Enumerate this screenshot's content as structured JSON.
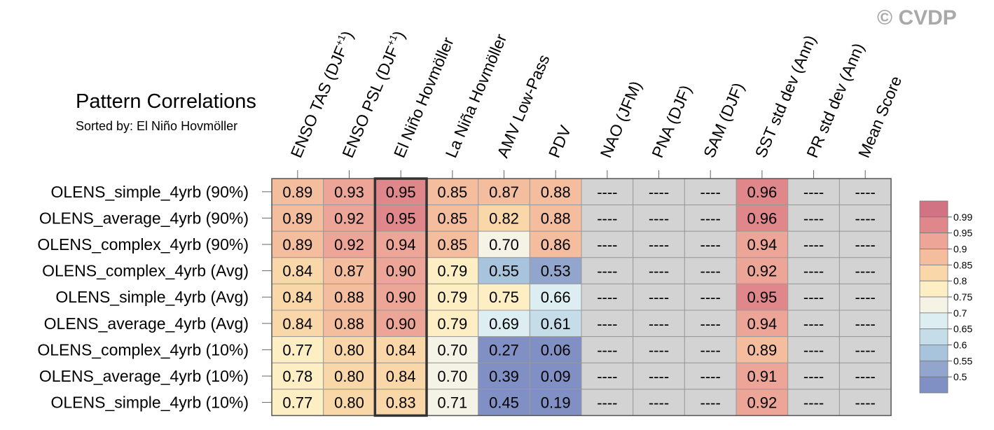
{
  "credit": "© CVDP",
  "chart_data": {
    "type": "heatmap",
    "title": "Pattern Correlations",
    "subtitle": "Sorted by: El Niño Hovmöller",
    "sorted_column": "El Niño Hovmöller",
    "columns": [
      "ENSO TAS (DJF+1)",
      "ENSO PSL (DJF+1)",
      "El Niño Hovmöller",
      "La Niña Hovmöller",
      "AMV Low-Pass",
      "PDV",
      "NAO (JFM)",
      "PNA (DJF)",
      "SAM (DJF)",
      "SST std dev (Ann)",
      "PR std dev (Ann)",
      "Mean Score"
    ],
    "rows": [
      "OLENS_simple_4yrb (90%)",
      "OLENS_average_4yrb (90%)",
      "OLENS_complex_4yrb (90%)",
      "OLENS_complex_4yrb (Avg)",
      "OLENS_simple_4yrb (Avg)",
      "OLENS_average_4yrb (Avg)",
      "OLENS_complex_4yrb (10%)",
      "OLENS_average_4yrb (10%)",
      "OLENS_simple_4yrb (10%)"
    ],
    "values": [
      [
        "0.89",
        "0.93",
        "0.95",
        "0.85",
        "0.87",
        "0.88",
        "----",
        "----",
        "----",
        "0.96",
        "----",
        "----"
      ],
      [
        "0.89",
        "0.92",
        "0.95",
        "0.85",
        "0.82",
        "0.88",
        "----",
        "----",
        "----",
        "0.96",
        "----",
        "----"
      ],
      [
        "0.89",
        "0.92",
        "0.94",
        "0.85",
        "0.70",
        "0.86",
        "----",
        "----",
        "----",
        "0.94",
        "----",
        "----"
      ],
      [
        "0.84",
        "0.87",
        "0.90",
        "0.79",
        "0.55",
        "0.53",
        "----",
        "----",
        "----",
        "0.92",
        "----",
        "----"
      ],
      [
        "0.84",
        "0.88",
        "0.90",
        "0.79",
        "0.75",
        "0.66",
        "----",
        "----",
        "----",
        "0.95",
        "----",
        "----"
      ],
      [
        "0.84",
        "0.88",
        "0.90",
        "0.79",
        "0.69",
        "0.61",
        "----",
        "----",
        "----",
        "0.94",
        "----",
        "----"
      ],
      [
        "0.77",
        "0.80",
        "0.84",
        "0.70",
        "0.27",
        "0.06",
        "----",
        "----",
        "----",
        "0.89",
        "----",
        "----"
      ],
      [
        "0.78",
        "0.80",
        "0.84",
        "0.70",
        "0.39",
        "0.09",
        "----",
        "----",
        "----",
        "0.91",
        "----",
        "----"
      ],
      [
        "0.77",
        "0.80",
        "0.83",
        "0.71",
        "0.45",
        "0.19",
        "----",
        "----",
        "----",
        "0.92",
        "----",
        "----"
      ]
    ],
    "missing_color": "#d3d3d3",
    "colorbar": {
      "labels": [
        "0.99",
        "0.95",
        "0.9",
        "0.85",
        "0.8",
        "0.75",
        "0.7",
        "0.65",
        "0.6",
        "0.55",
        "0.5"
      ],
      "colors": [
        "#d27384",
        "#e0878b",
        "#eca597",
        "#f4bd9e",
        "#fad7a9",
        "#fdeec4",
        "#f5f3e6",
        "#ddeef3",
        "#c4dde9",
        "#a8c3dc",
        "#91a5cd",
        "#8090c4"
      ]
    }
  }
}
